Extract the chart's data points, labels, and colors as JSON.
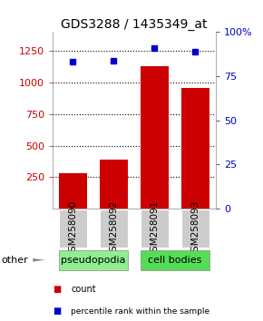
{
  "title": "GDS3288 / 1435349_at",
  "samples": [
    "GSM258090",
    "GSM258092",
    "GSM258091",
    "GSM258093"
  ],
  "counts": [
    280,
    390,
    1130,
    960
  ],
  "percentiles": [
    83,
    84,
    91,
    89
  ],
  "groups": [
    {
      "label": "pseudopodia",
      "indices": [
        0,
        1
      ],
      "color": "#90ee90"
    },
    {
      "label": "cell bodies",
      "indices": [
        2,
        3
      ],
      "color": "#55dd55"
    }
  ],
  "left_ylim": [
    0,
    1400
  ],
  "left_yticks": [
    250,
    500,
    750,
    1000,
    1250
  ],
  "right_yticks": [
    0,
    25,
    50,
    75,
    100
  ],
  "bar_color": "#cc0000",
  "dot_color": "#0000cc",
  "bar_width": 0.7,
  "sample_bg": "#cccccc",
  "other_label": "other",
  "legend_count_label": "count",
  "legend_pct_label": "percentile rank within the sample",
  "title_fontsize": 10,
  "tick_fontsize": 8,
  "left_tick_color": "#cc0000",
  "right_tick_color": "#0000cc",
  "label_fontsize": 8
}
